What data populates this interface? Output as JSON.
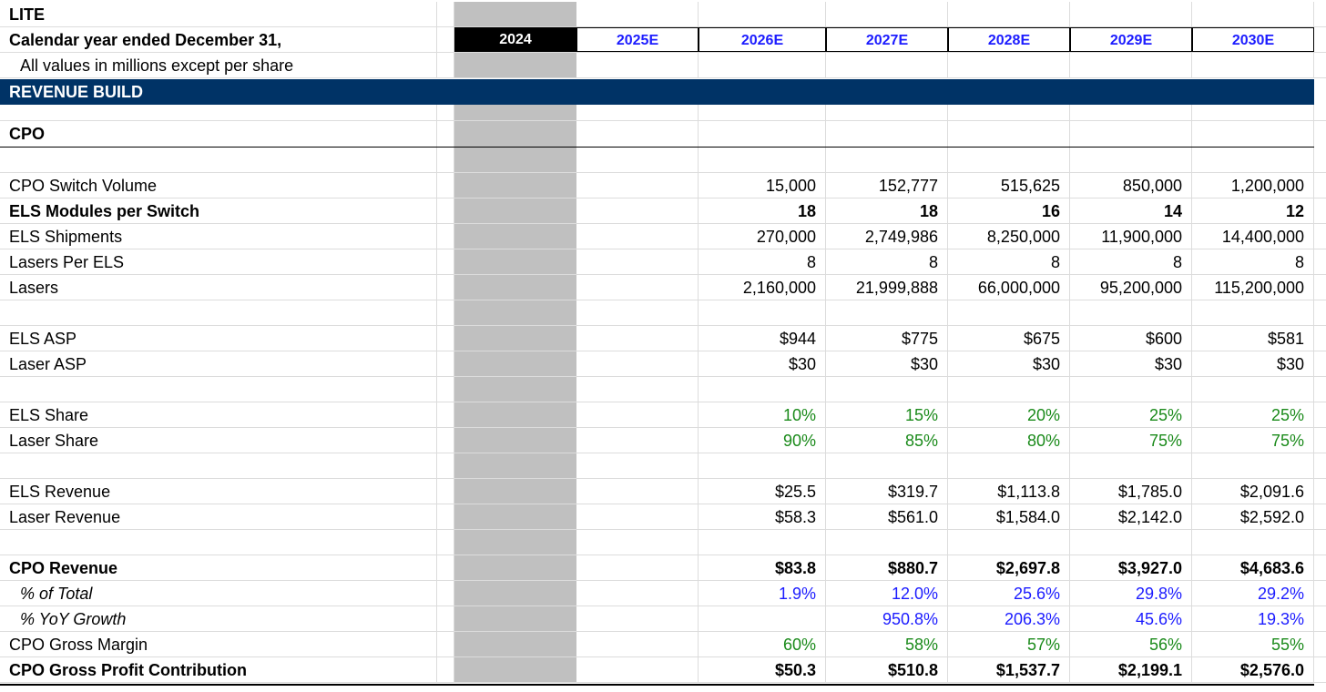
{
  "ticker": "LITE",
  "subtitle": "Calendar year ended December 31,",
  "note": "All values in millions except per share",
  "section": "REVENUE BUILD",
  "group": "CPO",
  "years": [
    "2024",
    "2025E",
    "2026E",
    "2027E",
    "2028E",
    "2029E",
    "2030E"
  ],
  "rows": [
    {
      "label": "CPO Switch Volume",
      "values": [
        "",
        "",
        "15,000",
        "152,777",
        "515,625",
        "850,000",
        "1,200,000"
      ]
    },
    {
      "label": "ELS Modules per Switch",
      "values": [
        "",
        "",
        "18",
        "18",
        "16",
        "14",
        "12"
      ]
    },
    {
      "label": "ELS Shipments",
      "values": [
        "",
        "",
        "270,000",
        "2,749,986",
        "8,250,000",
        "11,900,000",
        "14,400,000"
      ]
    },
    {
      "label": "Lasers Per ELS",
      "values": [
        "",
        "",
        "8",
        "8",
        "8",
        "8",
        "8"
      ]
    },
    {
      "label": "Lasers",
      "values": [
        "",
        "",
        "2,160,000",
        "21,999,888",
        "66,000,000",
        "95,200,000",
        "115,200,000"
      ]
    },
    {
      "label": "",
      "values": [
        "",
        "",
        "",
        "",
        "",
        "",
        ""
      ]
    },
    {
      "label": "ELS ASP",
      "values": [
        "",
        "",
        "$944",
        "$775",
        "$675",
        "$600",
        "$581"
      ]
    },
    {
      "label": "Laser ASP",
      "values": [
        "",
        "",
        "$30",
        "$30",
        "$30",
        "$30",
        "$30"
      ]
    },
    {
      "label": "",
      "values": [
        "",
        "",
        "",
        "",
        "",
        "",
        ""
      ]
    },
    {
      "label": "ELS Share",
      "values": [
        "",
        "",
        "10%",
        "15%",
        "20%",
        "25%",
        "25%"
      ]
    },
    {
      "label": "Laser Share",
      "values": [
        "",
        "",
        "90%",
        "85%",
        "80%",
        "75%",
        "75%"
      ]
    },
    {
      "label": "",
      "values": [
        "",
        "",
        "",
        "",
        "",
        "",
        ""
      ]
    },
    {
      "label": "ELS Revenue",
      "values": [
        "",
        "",
        "$25.5",
        "$319.7",
        "$1,113.8",
        "$1,785.0",
        "$2,091.6"
      ]
    },
    {
      "label": "Laser Revenue",
      "values": [
        "",
        "",
        "$58.3",
        "$561.0",
        "$1,584.0",
        "$2,142.0",
        "$2,592.0"
      ]
    },
    {
      "label": "",
      "values": [
        "",
        "",
        "",
        "",
        "",
        "",
        ""
      ]
    },
    {
      "label": "CPO Revenue",
      "values": [
        "",
        "",
        "$83.8",
        "$880.7",
        "$2,697.8",
        "$3,927.0",
        "$4,683.6"
      ]
    },
    {
      "label": "% of Total",
      "values": [
        "",
        "",
        "1.9%",
        "12.0%",
        "25.6%",
        "29.8%",
        "29.2%"
      ]
    },
    {
      "label": "% YoY Growth",
      "values": [
        "",
        "",
        "",
        "950.8%",
        "206.3%",
        "45.6%",
        "19.3%"
      ]
    },
    {
      "label": "CPO Gross Margin",
      "values": [
        "",
        "",
        "60%",
        "58%",
        "57%",
        "56%",
        "55%"
      ]
    },
    {
      "label": "CPO Gross Profit Contribution",
      "values": [
        "",
        "",
        "$50.3",
        "$510.8",
        "$1,537.7",
        "$2,199.1",
        "$2,576.0"
      ]
    }
  ],
  "colors": {
    "banner": "#003366",
    "year_label": "#1c1cff",
    "input_green": "#1a8a1a",
    "pct_blue": "#1c1cff",
    "shaded_column": "#c0c0c0"
  }
}
